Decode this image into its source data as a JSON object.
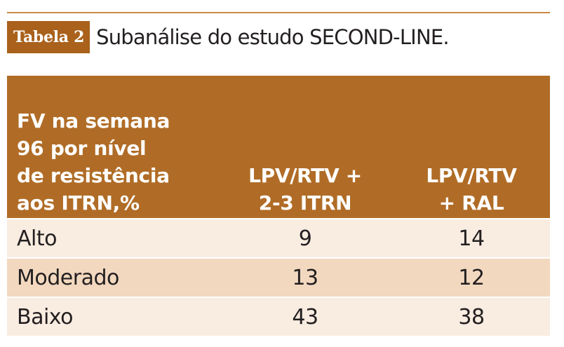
{
  "table_title": {
    "badge": "Tabela 2",
    "caption": "Subanálise do estudo SECOND-LINE."
  },
  "header": {
    "col1": [
      "FV na semana",
      "96 por nível",
      "de resistência",
      "aos ITRN,%"
    ],
    "col2": [
      "LPV/RTV +",
      "2-3 ITRN"
    ],
    "col3": [
      "LPV/RTV",
      "+ RAL"
    ]
  },
  "rows": [
    {
      "label": "Alto",
      "col2": "9",
      "col3": "14"
    },
    {
      "label": "Moderado",
      "col2": "13",
      "col3": "12"
    },
    {
      "label": "Baixo",
      "col2": "43",
      "col3": "38"
    }
  ],
  "colors": {
    "accent": "#b06c26",
    "badge": "#a9611b",
    "row_light": "#f9ece1",
    "row_dark": "#f2d8bf"
  }
}
